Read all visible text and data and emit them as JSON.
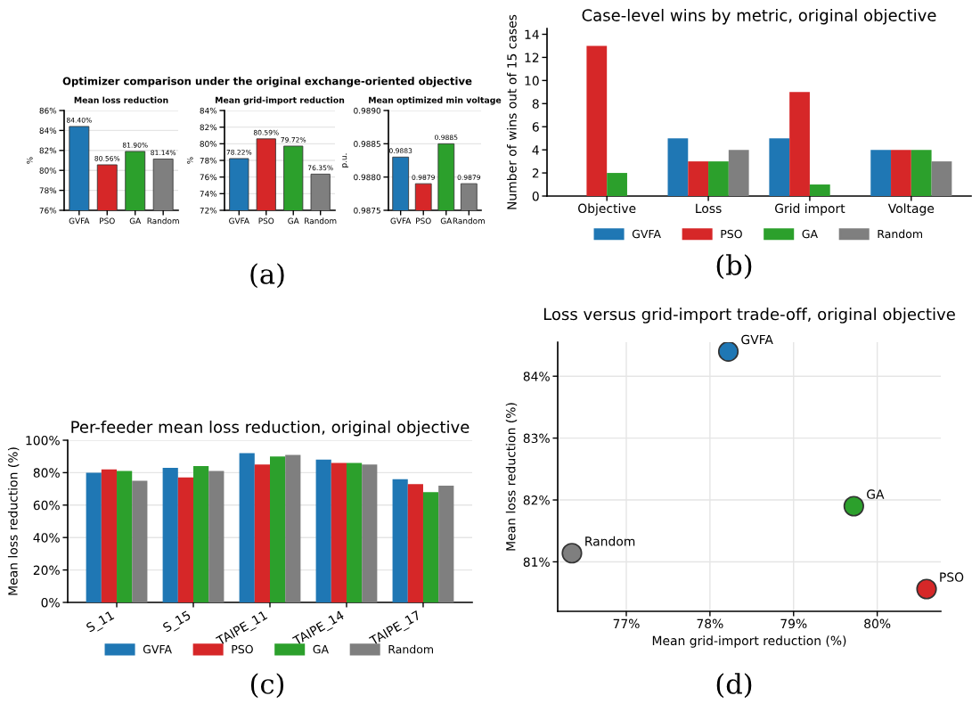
{
  "chart_data": [
    {
      "type": "bar",
      "title": "Mean loss reduction",
      "ylabel": "%",
      "categories": [
        "GVFA",
        "PSO",
        "GA",
        "Random"
      ],
      "values": [
        84.4,
        80.56,
        81.9,
        81.14
      ],
      "colors": [
        "#1f77b4",
        "#d62728",
        "#2ca02c",
        "#7f7f7f"
      ],
      "value_labels": [
        "84.40%",
        "80.56%",
        "81.90%",
        "81.14%"
      ],
      "ylim": [
        76,
        86
      ],
      "yticks": [
        {
          "value": 76,
          "label": "76%"
        },
        {
          "value": 78,
          "label": "78%"
        },
        {
          "value": 80,
          "label": "80%"
        },
        {
          "value": 82,
          "label": "82%"
        },
        {
          "value": 84,
          "label": "84%"
        },
        {
          "value": 86,
          "label": "86%"
        }
      ],
      "grid": "y",
      "legend": false,
      "annotations": [
        "Optimizer comparison under the original exchange-oriented objective",
        "(a)"
      ]
    },
    {
      "type": "bar",
      "title": "Mean grid-import reduction",
      "ylabel": "%",
      "categories": [
        "GVFA",
        "PSO",
        "GA",
        "Random"
      ],
      "values": [
        78.22,
        80.59,
        79.72,
        76.35
      ],
      "colors": [
        "#1f77b4",
        "#d62728",
        "#2ca02c",
        "#7f7f7f"
      ],
      "value_labels": [
        "78.22%",
        "80.59%",
        "79.72%",
        "76.35%"
      ],
      "ylim": [
        72,
        84
      ],
      "yticks": [
        {
          "value": 72,
          "label": "72%"
        },
        {
          "value": 74,
          "label": "74%"
        },
        {
          "value": 76,
          "label": "76%"
        },
        {
          "value": 78,
          "label": "78%"
        },
        {
          "value": 80,
          "label": "80%"
        },
        {
          "value": 82,
          "label": "82%"
        },
        {
          "value": 84,
          "label": "84%"
        }
      ],
      "grid": "y",
      "legend": false
    },
    {
      "type": "bar",
      "title": "Mean optimized min voltage",
      "ylabel": "p.u.",
      "categories": [
        "GVFA",
        "PSO",
        "GA",
        "Random"
      ],
      "values": [
        0.9883,
        0.9879,
        0.9885,
        0.9879
      ],
      "colors": [
        "#1f77b4",
        "#d62728",
        "#2ca02c",
        "#7f7f7f"
      ],
      "value_labels": [
        "0.9883",
        "0.9879",
        "0.9885",
        "0.9879"
      ],
      "ylim": [
        0.9875,
        0.989
      ],
      "yticks": [
        {
          "value": 0.9875,
          "label": "0.9875"
        },
        {
          "value": 0.988,
          "label": "0.9880"
        },
        {
          "value": 0.9885,
          "label": "0.9885"
        },
        {
          "value": 0.989,
          "label": "0.9890"
        }
      ],
      "grid": "y",
      "legend": false
    },
    {
      "type": "bar",
      "title": "Case-level wins by metric, original objective",
      "ylabel": "Number of wins out of 15 cases",
      "categories": [
        "Objective",
        "Loss",
        "Grid import",
        "Voltage"
      ],
      "series": [
        {
          "name": "GVFA",
          "color": "#1f77b4",
          "values": [
            0,
            5,
            5,
            4
          ]
        },
        {
          "name": "PSO",
          "color": "#d62728",
          "values": [
            13,
            3,
            9,
            4
          ]
        },
        {
          "name": "GA",
          "color": "#2ca02c",
          "values": [
            2,
            3,
            1,
            4
          ]
        },
        {
          "name": "Random",
          "color": "#7f7f7f",
          "values": [
            0,
            4,
            0,
            3
          ]
        }
      ],
      "ylim": [
        0,
        14.5
      ],
      "yticks": [
        0,
        2,
        4,
        6,
        8,
        10,
        12,
        14
      ],
      "grid": false,
      "legend": "bottom",
      "annotations": [
        "(b)"
      ]
    },
    {
      "type": "bar",
      "title": "Per-feeder mean loss reduction, original objective",
      "ylabel": "Mean loss reduction (%)",
      "categories": [
        "S_11",
        "S_15",
        "TAIPE_11",
        "TAIPE_14",
        "TAIPE_17"
      ],
      "series": [
        {
          "name": "GVFA",
          "color": "#1f77b4",
          "values": [
            80,
            83,
            92,
            88,
            76
          ]
        },
        {
          "name": "PSO",
          "color": "#d62728",
          "values": [
            82,
            77,
            85,
            86,
            73
          ]
        },
        {
          "name": "GA",
          "color": "#2ca02c",
          "values": [
            81,
            84,
            90,
            86,
            68
          ]
        },
        {
          "name": "Random",
          "color": "#7f7f7f",
          "values": [
            75,
            81,
            91,
            85,
            72
          ]
        }
      ],
      "ylim": [
        0,
        100
      ],
      "yticks": [
        {
          "value": 0,
          "label": "0%"
        },
        {
          "value": 20,
          "label": "20%"
        },
        {
          "value": 40,
          "label": "40%"
        },
        {
          "value": 60,
          "label": "60%"
        },
        {
          "value": 80,
          "label": "80%"
        },
        {
          "value": 100,
          "label": "100%"
        }
      ],
      "grid": "y",
      "legend": "bottom",
      "annotations": [
        "(c)"
      ]
    },
    {
      "type": "scatter",
      "title": "Loss versus grid-import trade-off, original objective",
      "xlabel": "Mean grid-import reduction (%)",
      "ylabel": "Mean loss reduction (%)",
      "series": [
        {
          "name": "GVFA",
          "color": "#1f77b4",
          "x": [
            78.22
          ],
          "values": [
            84.4
          ]
        },
        {
          "name": "PSO",
          "color": "#d62728",
          "x": [
            80.59
          ],
          "values": [
            80.56
          ]
        },
        {
          "name": "GA",
          "color": "#2ca02c",
          "x": [
            79.72
          ],
          "values": [
            81.9
          ]
        },
        {
          "name": "Random",
          "color": "#7f7f7f",
          "x": [
            76.35
          ],
          "values": [
            81.14
          ]
        }
      ],
      "xlim": [
        76.18,
        80.76
      ],
      "ylim": [
        80.2,
        84.55
      ],
      "xticks": [
        {
          "value": 77,
          "label": "77%"
        },
        {
          "value": 78,
          "label": "78%"
        },
        {
          "value": 79,
          "label": "79%"
        },
        {
          "value": 80,
          "label": "80%"
        }
      ],
      "yticks": [
        {
          "value": 81,
          "label": "81%"
        },
        {
          "value": 82,
          "label": "82%"
        },
        {
          "value": 83,
          "label": "83%"
        },
        {
          "value": 84,
          "label": "84%"
        }
      ],
      "grid": true,
      "legend": false,
      "marker": "circle",
      "annotations": [
        "(d)"
      ]
    }
  ]
}
